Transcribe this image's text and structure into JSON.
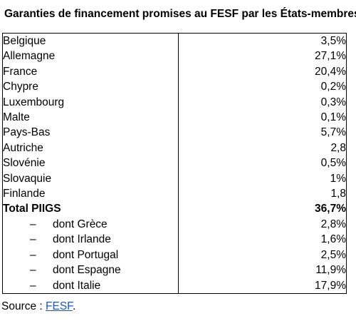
{
  "title": "Garanties de financement promises au FESF par les États-membres",
  "rows": [
    {
      "country": "Belgique",
      "value": "3,5%"
    },
    {
      "country": "Allemagne",
      "value": "27,1%"
    },
    {
      "country": "France",
      "value": "20,4%"
    },
    {
      "country": "Chypre",
      "value": "0,2%"
    },
    {
      "country": "Luxembourg",
      "value": "0,3%"
    },
    {
      "country": "Malte",
      "value": "0,1%"
    },
    {
      "country": "Pays-Bas",
      "value": "5,7%"
    },
    {
      "country": "Autriche",
      "value": "2,8"
    },
    {
      "country": "Slovénie",
      "value": "0,5%"
    },
    {
      "country": "Slovaquie",
      "value": "1%"
    },
    {
      "country": "Finlande",
      "value": "1,8"
    }
  ],
  "total": {
    "label": "Total PIIGS",
    "value": "36,7%"
  },
  "sub_dash": "–",
  "sub_rows": [
    {
      "country": "dont Grèce",
      "value": "2,8%"
    },
    {
      "country": "dont Irlande",
      "value": "1,6%"
    },
    {
      "country": "dont Portugal",
      "value": "2,5%"
    },
    {
      "country": "dont Espagne",
      "value": "11,9%"
    },
    {
      "country": "dont Italie",
      "value": "17,9%"
    }
  ],
  "source": {
    "prefix": "Source : ",
    "link_text": "FESF",
    "suffix": "."
  },
  "colors": {
    "link": "#1a56c8",
    "border": "#000000"
  }
}
